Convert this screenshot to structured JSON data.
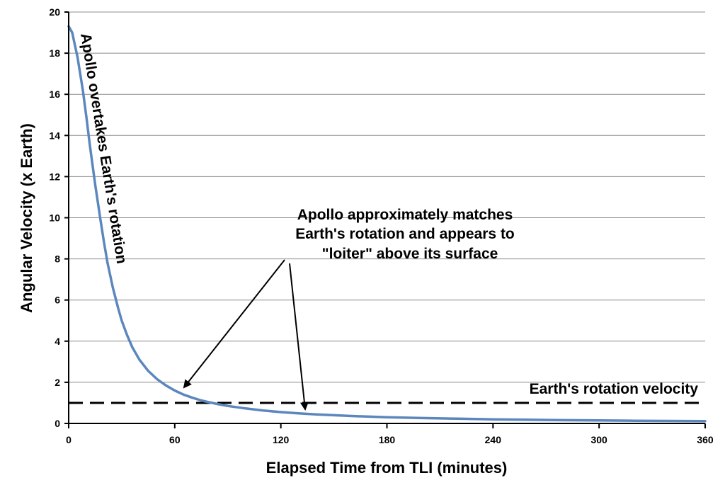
{
  "chart_data": {
    "type": "line",
    "xlabel": "Elapsed Time from TLI (minutes)",
    "ylabel": "Angular Velocity (x Earth)",
    "xlim": [
      0,
      360
    ],
    "ylim": [
      0,
      20
    ],
    "xticks": [
      "0",
      "60",
      "120",
      "180",
      "240",
      "300",
      "360"
    ],
    "yticks": [
      "0",
      "2",
      "4",
      "6",
      "8",
      "10",
      "12",
      "14",
      "16",
      "18",
      "20"
    ],
    "grid": "horizontal",
    "series": [
      {
        "color": "#5b87bd",
        "x": [
          0,
          2,
          5,
          8,
          10,
          12,
          15,
          18,
          20,
          22,
          25,
          28,
          30,
          33,
          36,
          40,
          45,
          50,
          55,
          60,
          65,
          70,
          75,
          80,
          85,
          90,
          100,
          110,
          120,
          130,
          140,
          150,
          160,
          180,
          200,
          220,
          240,
          260,
          280,
          300,
          320,
          340,
          360
        ],
        "y": [
          19.3,
          19.0,
          17.8,
          16.2,
          14.9,
          13.5,
          11.6,
          9.9,
          8.8,
          7.8,
          6.6,
          5.6,
          5.0,
          4.3,
          3.7,
          3.1,
          2.55,
          2.15,
          1.85,
          1.6,
          1.4,
          1.25,
          1.12,
          1.02,
          0.93,
          0.85,
          0.73,
          0.63,
          0.55,
          0.49,
          0.44,
          0.4,
          0.36,
          0.3,
          0.26,
          0.23,
          0.2,
          0.18,
          0.16,
          0.145,
          0.13,
          0.12,
          0.11
        ]
      }
    ],
    "reference_line": {
      "label": "Earth's rotation velocity",
      "y": 1,
      "color": "#000000"
    },
    "annotations": {
      "overtake": "Apollo overtakes Earth's rotation",
      "loiter_lines": [
        "Apollo approximately matches",
        "Earth's rotation and appears to",
        "\"loiter\" above its surface"
      ]
    }
  }
}
